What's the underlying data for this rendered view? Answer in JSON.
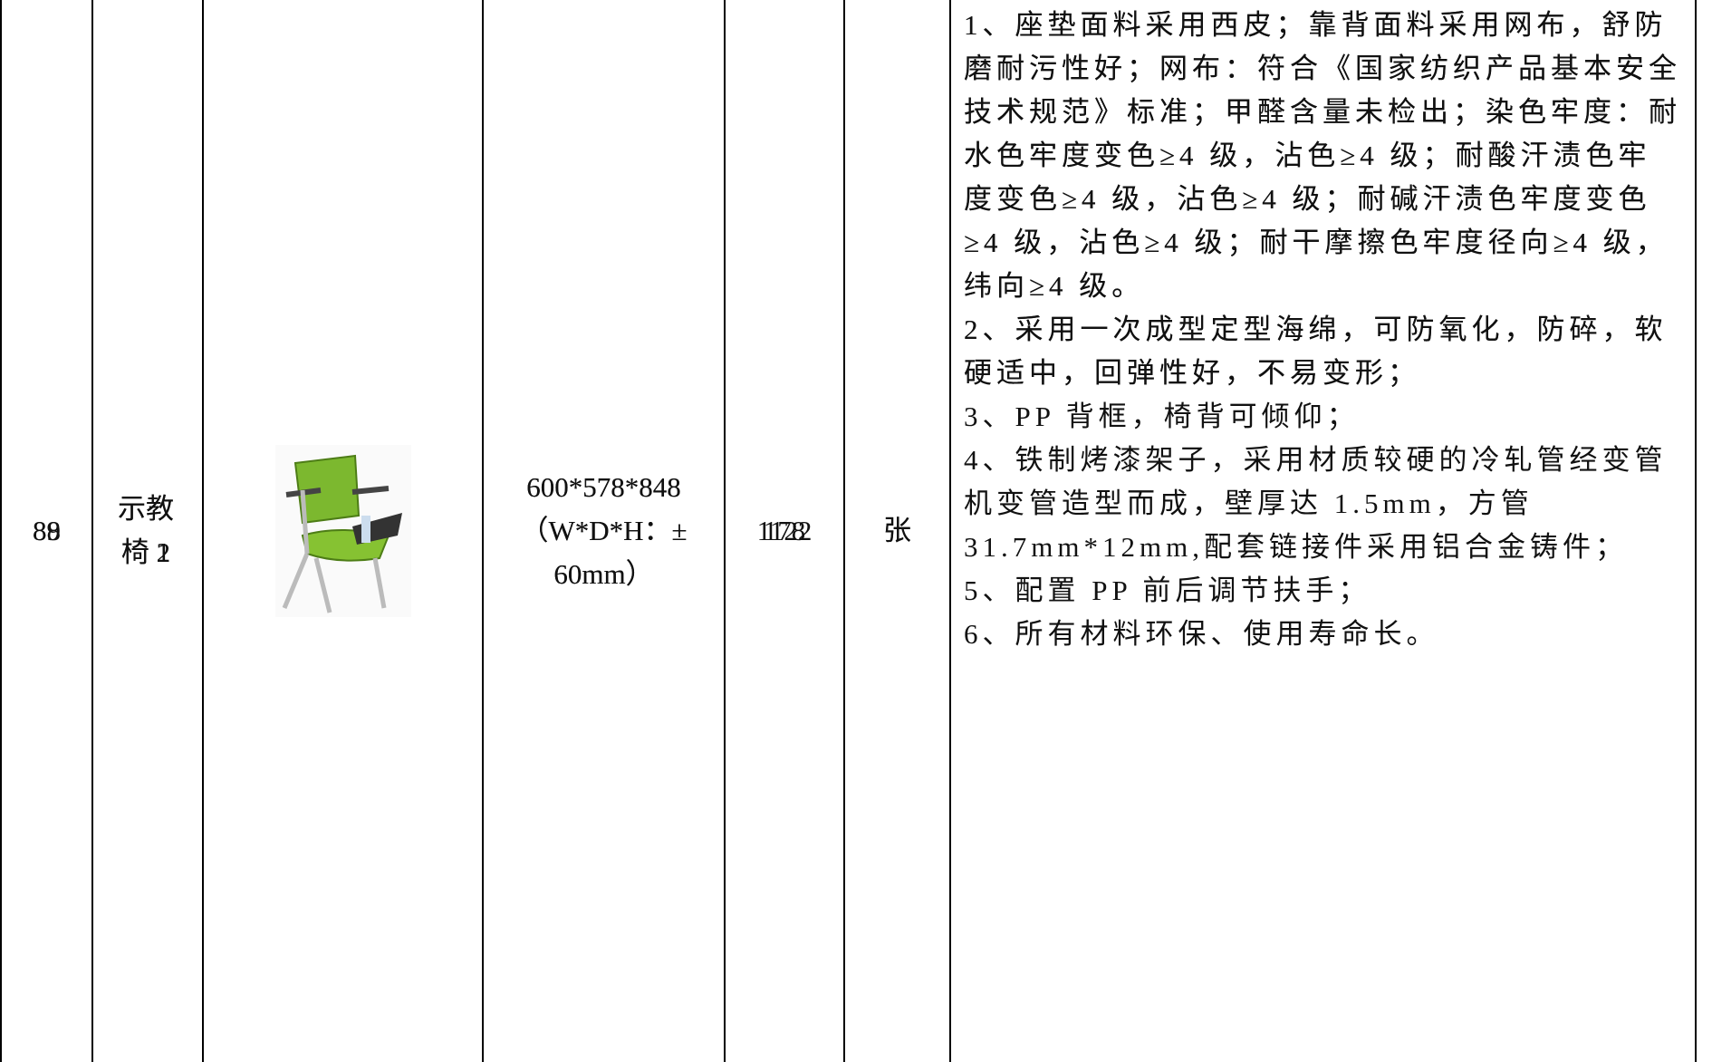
{
  "table": {
    "rows": [
      {
        "no": "88",
        "name": "示教椅 1",
        "dims": [
          "600*578*848",
          "（W*D*H：±",
          "60mm）"
        ],
        "qty": "1122",
        "unit": "张",
        "description": [
          "1、座垫面料采用西皮；靠背面料采用网布，舒防",
          "磨耐污性好；网布：符合《国家纺织产品基本安全",
          "技术规范》标准；甲醛含量未检出；染色牢度：耐",
          "水色牢度变色≥4 级，沾色≥4 级；耐酸汗渍色牢",
          "度变色≥4 级，沾色≥4 级；耐碱汗渍色牢度变色",
          "≥4 级，沾色≥4 级；耐干摩擦色牢度径向≥4 级，",
          "纬向≥4 级。",
          "2、采用一次成型定型海绵，可防氧化，防碎，软",
          "硬适中，回弹性好，不易变形；",
          "3、PP 背框，椅背可倾仰；",
          "4、铁制烤漆架子，采用材质较硬的冷轧管经变管",
          "机变管造型而成，壁厚达 1.5mm，方管",
          "31.7mm*12mm,配套链接件采用铝合金铸件；",
          "5、配置 PP 前后调节扶手；",
          "6、所有材料环保、使用寿命长。"
        ]
      },
      {
        "no": "89",
        "name": "示教椅 2",
        "dims": [
          "600*578*848",
          "（W*D*H：±",
          "60mm）"
        ],
        "qty": "178",
        "unit": "张",
        "description": [
          "1、座垫面料采用西皮；靠背面料采用网布，舒防",
          "磨耐污性好；网布：符合《国家纺织产品基本安全",
          "技术规范》标准；甲醛含量未检出；染色牢度：耐",
          "水色牢度变色≥4 级，沾色≥4 级；耐酸汗渍色牢",
          "度变色≥4 级，沾色≥4 级；耐碱汗渍色牢度变色",
          "≥4 级，沾色≥4 级；耐干摩擦色牢度径向≥4 级，",
          "纬向≥4 级。",
          "2、采用一次成型定型海绵，可防氧化，防碎，软",
          "硬适中，回弹性好，不易变形；"
        ]
      }
    ]
  }
}
